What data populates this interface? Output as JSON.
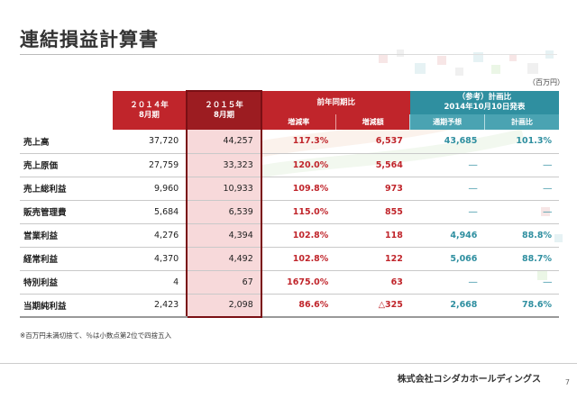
{
  "title": "連結損益計算書",
  "unit": "（百万円）",
  "headers": {
    "y2014": "２０１４年\n8月期",
    "y2015": "２０１５年\n8月期",
    "yoy": "前年同期比",
    "yoy_rate": "増減率",
    "yoy_amount": "増減額",
    "ref": "（参考）計画比\n2014年10月10日発表",
    "ref_forecast": "通期予想",
    "ref_ratio": "計画比"
  },
  "rows": [
    {
      "label": "売上高",
      "y2014": "37,720",
      "y2015": "44,257",
      "rate": "117.3%",
      "amount": "6,537",
      "forecast": "43,685",
      "ratio": "101.3%"
    },
    {
      "label": "売上原価",
      "y2014": "27,759",
      "y2015": "33,323",
      "rate": "120.0%",
      "amount": "5,564",
      "forecast": "―",
      "ratio": "―"
    },
    {
      "label": "売上総利益",
      "y2014": "9,960",
      "y2015": "10,933",
      "rate": "109.8%",
      "amount": "973",
      "forecast": "―",
      "ratio": "―"
    },
    {
      "label": "販売管理費",
      "y2014": "5,684",
      "y2015": "6,539",
      "rate": "115.0%",
      "amount": "855",
      "forecast": "―",
      "ratio": "―"
    },
    {
      "label": "営業利益",
      "y2014": "4,276",
      "y2015": "4,394",
      "rate": "102.8%",
      "amount": "118",
      "forecast": "4,946",
      "ratio": "88.8%"
    },
    {
      "label": "経常利益",
      "y2014": "4,370",
      "y2015": "4,492",
      "rate": "102.8%",
      "amount": "122",
      "forecast": "5,066",
      "ratio": "88.7%"
    },
    {
      "label": "特別利益",
      "y2014": "4",
      "y2015": "67",
      "rate": "1675.0%",
      "amount": "63",
      "forecast": "―",
      "ratio": "―"
    },
    {
      "label": "当期純利益",
      "y2014": "2,423",
      "y2015": "2,098",
      "rate": "86.6%",
      "amount": "△325",
      "forecast": "2,668",
      "ratio": "78.6%"
    }
  ],
  "note": "※百万円未満切捨て、％は小数点第2位で四捨五入",
  "company": "株式会社コシダカホールディングス",
  "page_number": "7",
  "colors": {
    "accent_red": "#c0252b",
    "accent_teal": "#2f8fa0",
    "highlight": "#f7d9da"
  }
}
